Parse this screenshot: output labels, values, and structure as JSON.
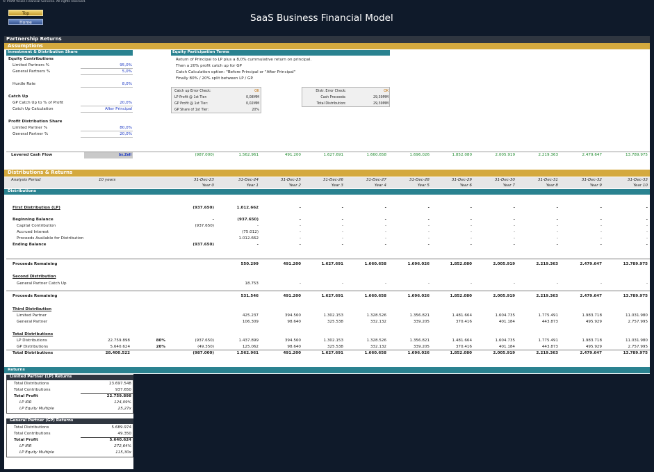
{
  "header": {
    "copyright": "© Profit Vision Financial Services. All rights reserved.",
    "title": "SaaS Business Financial Model",
    "buttons": {
      "top": "Top",
      "home": "Home"
    }
  },
  "sections": {
    "partnership_returns": "Partnership Returns",
    "assumptions": "Assumptions",
    "distributions_returns": "Distributions & Returns",
    "distributions": "Distributions",
    "returns": "Returns"
  },
  "assumptions": {
    "inv_header": "Investment & Distribution Share",
    "rows": [
      {
        "label": "Equity Contributions",
        "value": "",
        "bold": true
      },
      {
        "label": "Limited Partners %",
        "value": "95,0%",
        "bold": false
      },
      {
        "label": "General Partners %",
        "value": "5,0%",
        "bold": false
      },
      {
        "label": "",
        "value": "",
        "bold": false
      },
      {
        "label": "Hurdle Rate",
        "value": "8,0%",
        "bold": false
      },
      {
        "label": "",
        "value": "",
        "bold": false
      },
      {
        "label": "Catch Up",
        "value": "",
        "bold": true
      },
      {
        "label": "GP Catch Up to % of Profit",
        "value": "20,0%",
        "bold": false
      },
      {
        "label": "Catch Up Calculation",
        "value": "After Principal",
        "bold": false
      },
      {
        "label": "",
        "value": "",
        "bold": false
      },
      {
        "label": "Profit Distribution Share",
        "value": "",
        "bold": true
      },
      {
        "label": "Limited Partner %",
        "value": "80,0%",
        "bold": false
      },
      {
        "label": "General Partner %",
        "value": "20,0%",
        "bold": false
      }
    ],
    "terms_header": "Equity Participation Terms",
    "terms": [
      "Return of Principal to LP plus a 8,0% cummulative return on principal.",
      "Then a 20% profit catch up for GP",
      "Catch Calculation option: \"Before Principal or \"After Principal\"",
      "Finally 80% / 20% split between LP / GP."
    ],
    "box1": [
      {
        "label": "Catch up Error Check:",
        "value": "OK",
        "ok": true
      },
      {
        "label": "LP Profit @ 1st Tier:",
        "value": "0,08MM",
        "ok": false
      },
      {
        "label": "GP Profit @ 1st Tier:",
        "value": "0,02MM",
        "ok": false
      },
      {
        "label": "GP Share of 1st Tier:",
        "value": "20%",
        "ok": false
      }
    ],
    "box2": [
      {
        "label": "Distr. Error Check:",
        "value": "OK",
        "ok": true
      },
      {
        "label": "Cash Proceeds:",
        "value": "29,39MM",
        "ok": false
      },
      {
        "label": "Total Distribution:",
        "value": "29,39MM",
        "ok": false
      }
    ]
  },
  "levered": {
    "label": "Levered Cash Flow",
    "tag": "bs.Zell",
    "values": [
      "(987.000)",
      "1.562.961",
      "491.200",
      "1.627.691",
      "1.660.658",
      "1.696.026",
      "1.852.080",
      "2.005.919",
      "2.219.363",
      "2.479.647",
      "13.789.975"
    ]
  },
  "timeline": {
    "analysis_label": "Analysis Period",
    "analysis_value": "10 years",
    "dates": [
      "31-Dec-23",
      "31-Dec-24",
      "31-Dec-25",
      "31-Dec-26",
      "31-Dec-27",
      "31-Dec-28",
      "31-Dec-29",
      "31-Dec-30",
      "31-Dec-31",
      "31-Dec-32",
      "31-Dec-33"
    ],
    "years": [
      "Year 0",
      "Year 1",
      "Year 2",
      "Year 3",
      "Year 4",
      "Year 5",
      "Year 6",
      "Year 7",
      "Year 8",
      "Year 9",
      "Year 10"
    ]
  },
  "dist_rows": [
    {
      "label": "First Distribution (LP)",
      "style": "bu",
      "y": 244,
      "total": "",
      "pct": "",
      "v": [
        "(937.650)",
        "1.012.662",
        "-",
        "-",
        "-",
        "-",
        "-",
        "-",
        "-",
        "-",
        "-"
      ],
      "bold": true
    },
    {
      "label": "Beginning Balance",
      "style": "b",
      "y": 261,
      "total": "",
      "pct": "",
      "v": [
        "-",
        "(937.650)",
        "-",
        "-",
        "-",
        "-",
        "-",
        "-",
        "-",
        "-",
        "-"
      ],
      "bold": true
    },
    {
      "label": "Capital Contribution",
      "style": "in",
      "y": 270,
      "total": "",
      "pct": "",
      "v": [
        "(937.650)",
        "-",
        "-",
        "-",
        "-",
        "-",
        "-",
        "-",
        "-",
        "-",
        "-"
      ],
      "bold": false
    },
    {
      "label": "Accrued Interest",
      "style": "in",
      "y": 279,
      "total": "",
      "pct": "",
      "v": [
        "",
        "(75.012)",
        "-",
        "-",
        "-",
        "-",
        "-",
        "-",
        "-",
        "-",
        "-"
      ],
      "bold": false
    },
    {
      "label": "Proceeds Available for Distribution",
      "style": "in",
      "y": 288,
      "total": "",
      "pct": "",
      "v": [
        "",
        "1.012.662",
        "-",
        "-",
        "-",
        "-",
        "-",
        "-",
        "-",
        "-",
        "-"
      ],
      "bold": false
    },
    {
      "label": "Ending Balance",
      "style": "b",
      "y": 297,
      "total": "",
      "pct": "",
      "v": [
        "(937.650)",
        "-",
        "-",
        "-",
        "-",
        "-",
        "-",
        "-",
        "-",
        "-",
        "-"
      ],
      "bold": true
    },
    {
      "label": "Proceeds Remaining",
      "style": "b",
      "y": 325,
      "total": "",
      "pct": "",
      "v": [
        "",
        "550.299",
        "491.200",
        "1.627.691",
        "1.660.658",
        "1.696.026",
        "1.852.080",
        "2.005.919",
        "2.219.363",
        "2.479.647",
        "13.789.975"
      ],
      "bold": true
    },
    {
      "label": "Second Distribution",
      "style": "bu",
      "y": 343,
      "total": "",
      "pct": "",
      "v": [
        "",
        "",
        "",
        "",
        "",
        "",
        "",
        "",
        "",
        "",
        ""
      ],
      "bold": true
    },
    {
      "label": "General Partner Catch Up",
      "style": "in",
      "y": 353,
      "total": "",
      "pct": "",
      "v": [
        "",
        "18.753",
        "-",
        "-",
        "-",
        "-",
        "-",
        "-",
        "-",
        "-",
        "-"
      ],
      "bold": false
    },
    {
      "label": "Proceeds Remaining",
      "style": "b",
      "y": 371,
      "total": "",
      "pct": "",
      "v": [
        "",
        "531.546",
        "491.200",
        "1.627.691",
        "1.660.658",
        "1.696.026",
        "1.852.080",
        "2.005.919",
        "2.219.363",
        "2.479.647",
        "13.789.975"
      ],
      "bold": true
    },
    {
      "label": "Third Distribution",
      "style": "bu",
      "y": 390,
      "total": "",
      "pct": "",
      "v": [
        "",
        "",
        "",
        "",
        "",
        "",
        "",
        "",
        "",
        "",
        ""
      ],
      "bold": true
    },
    {
      "label": "Limited Partner",
      "style": "in",
      "y": 399,
      "total": "",
      "pct": "",
      "v": [
        "",
        "425.237",
        "394.560",
        "1.302.153",
        "1.328.526",
        "1.356.821",
        "1.481.664",
        "1.604.735",
        "1.775.491",
        "1.983.718",
        "11.031.980"
      ],
      "bold": false
    },
    {
      "label": "General Partner",
      "style": "in",
      "y": 408,
      "total": "",
      "pct": "",
      "v": [
        "",
        "106.309",
        "98.640",
        "325.538",
        "332.132",
        "339.205",
        "370.416",
        "401.184",
        "443.873",
        "495.929",
        "2.757.995"
      ],
      "bold": false
    },
    {
      "label": "Total Distributions",
      "style": "bu",
      "y": 426,
      "total": "",
      "pct": "",
      "v": [
        "",
        "",
        "",
        "",
        "",
        "",
        "",
        "",
        "",
        "",
        ""
      ],
      "bold": true
    },
    {
      "label": "LP Distributions",
      "style": "in",
      "y": 435,
      "total": "22.759.898",
      "pct": "80%",
      "v": [
        "(937.650)",
        "1.437.899",
        "394.560",
        "1.302.153",
        "1.328.526",
        "1.356.821",
        "1.481.664",
        "1.604.735",
        "1.775.491",
        "1.983.718",
        "11.031.980"
      ],
      "bold": false
    },
    {
      "label": "GP Distributions",
      "style": "in",
      "y": 444,
      "total": "5.640.624",
      "pct": "20%",
      "v": [
        "(49.350)",
        "125.062",
        "98.640",
        "325.538",
        "332.132",
        "339.205",
        "370.416",
        "401.184",
        "443.873",
        "495.929",
        "2.757.995"
      ],
      "bold": false
    },
    {
      "label": "Total Distributions",
      "style": "b",
      "y": 453,
      "total": "28.400.522",
      "pct": "",
      "v": [
        "(987.000)",
        "1.562.961",
        "491.200",
        "1.627.691",
        "1.660.658",
        "1.696.026",
        "1.852.080",
        "2.005.919",
        "2.219.363",
        "2.479.647",
        "13.789.975"
      ],
      "bold": true
    }
  ],
  "returns": {
    "lp": {
      "header": "Limited Partner (LP) Returns",
      "rows": [
        {
          "label": "Total Distributions",
          "value": "23.697.548",
          "kind": "n"
        },
        {
          "label": "Total Contributions",
          "value": "937.650",
          "kind": "n"
        },
        {
          "label": "Total Profit",
          "value": "22.759.898",
          "kind": "b"
        },
        {
          "label": "LP IRR",
          "value": "124,09%",
          "kind": "i"
        },
        {
          "label": "LP Equity Multiple",
          "value": "25,27x",
          "kind": "i"
        }
      ]
    },
    "gp": {
      "header": "General Partner (GP) Returns",
      "rows": [
        {
          "label": "Total Distributions",
          "value": "5.689.974",
          "kind": "n"
        },
        {
          "label": "Total Contributions",
          "value": "49.350",
          "kind": "n"
        },
        {
          "label": "Total Profit",
          "value": "5.640.624",
          "kind": "b"
        },
        {
          "label": "LP IRR",
          "value": "272,64%",
          "kind": "i"
        },
        {
          "label": "LP Equity Multiple",
          "value": "115,30x",
          "kind": "i"
        }
      ]
    }
  }
}
